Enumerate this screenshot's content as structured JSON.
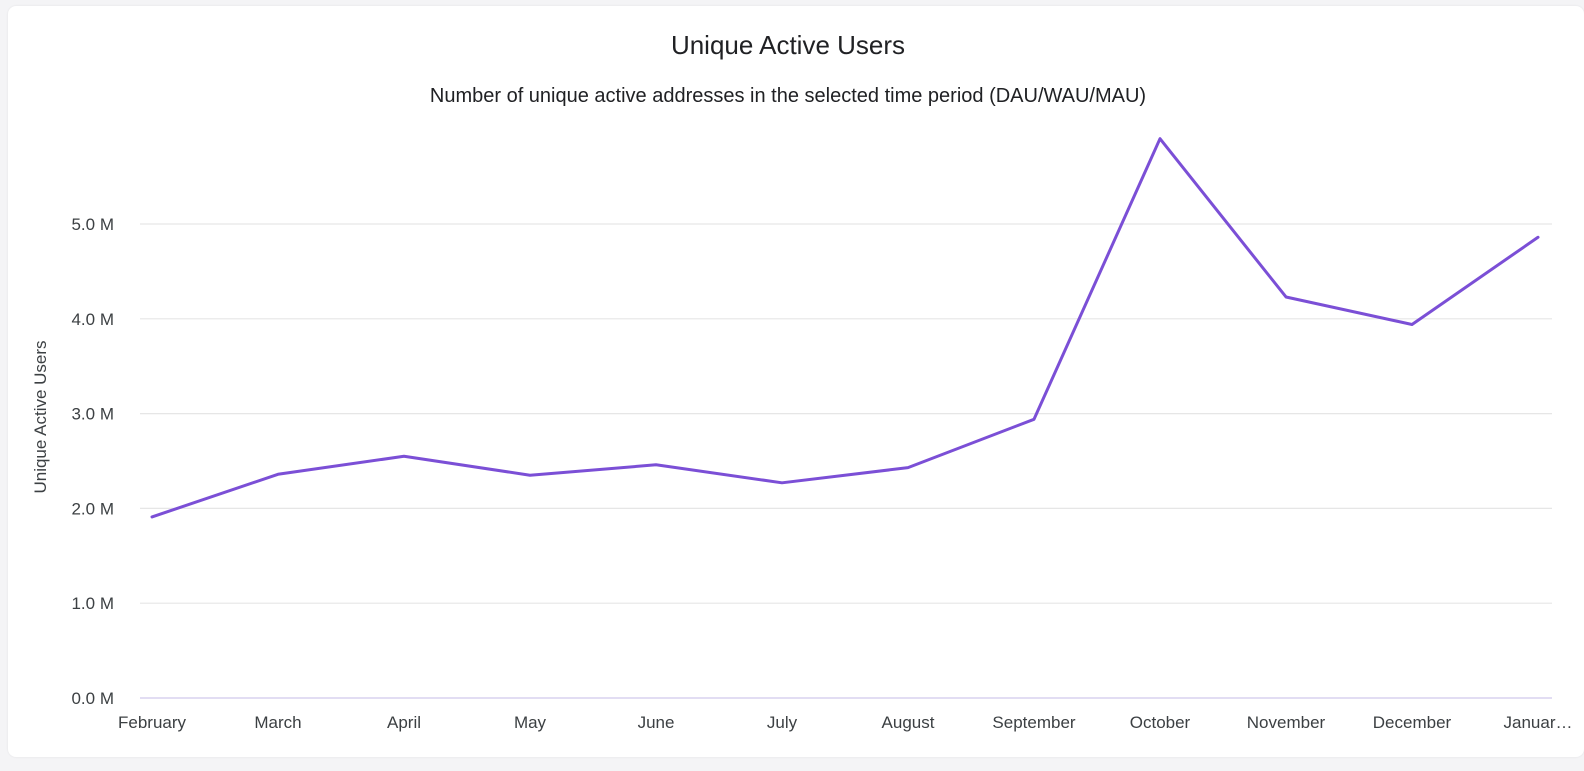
{
  "chart_data": {
    "type": "line",
    "title": "Unique Active Users",
    "subtitle": "Number of unique active addresses in the selected time period (DAU/WAU/MAU)",
    "xlabel": "",
    "ylabel": "Unique Active Users",
    "categories": [
      "February",
      "March",
      "April",
      "May",
      "June",
      "July",
      "August",
      "September",
      "October",
      "November",
      "December",
      "Januar…"
    ],
    "series": [
      {
        "values": [
          1.91,
          2.36,
          2.55,
          2.35,
          2.46,
          2.27,
          2.43,
          2.94,
          5.9,
          4.23,
          3.94,
          4.86
        ]
      }
    ],
    "y_unit": "M",
    "yticks": [
      0,
      1,
      2,
      3,
      4,
      5
    ],
    "ytick_labels": [
      "0.0 M",
      "1.0 M",
      "2.0 M",
      "3.0 M",
      "4.0 M",
      "5.0 M"
    ],
    "ylim": [
      0,
      6
    ],
    "grid": true,
    "legend": "none",
    "line_color": "#7b4fd6"
  }
}
